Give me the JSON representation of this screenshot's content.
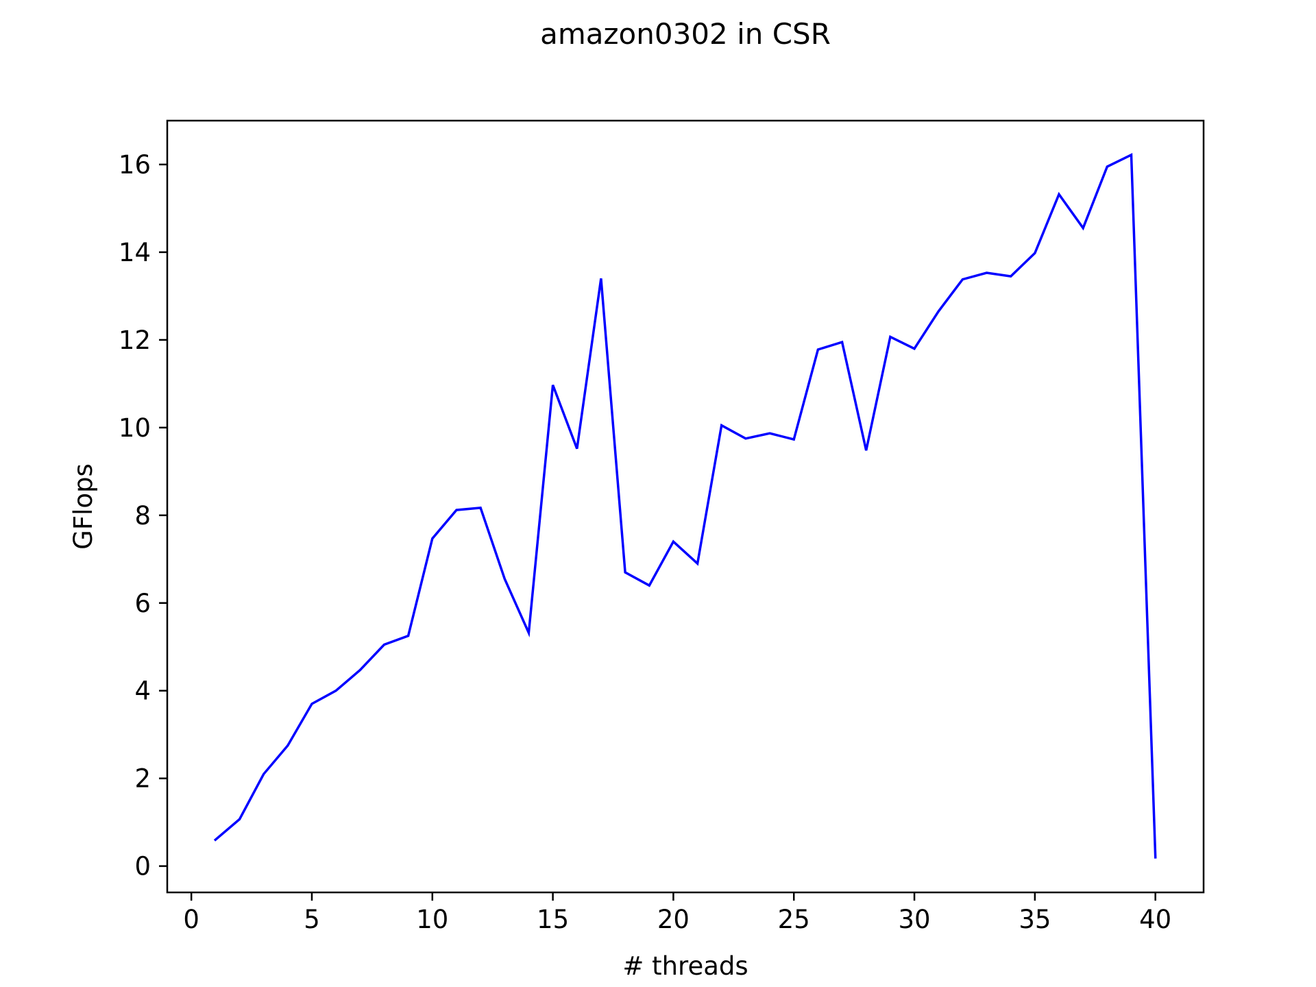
{
  "chart_data": {
    "type": "line",
    "title": "amazon0302 in CSR",
    "xlabel": "# threads",
    "ylabel": "GFlops",
    "xlim": [
      -1,
      42
    ],
    "ylim": [
      -0.6,
      17
    ],
    "xticks": [
      0,
      5,
      10,
      15,
      20,
      25,
      30,
      35,
      40
    ],
    "yticks": [
      0,
      2,
      4,
      6,
      8,
      10,
      12,
      14,
      16
    ],
    "grid": false,
    "legend": "none",
    "series": [
      {
        "color": "#0000ff",
        "x": [
          1,
          2,
          3,
          4,
          5,
          6,
          7,
          8,
          9,
          10,
          11,
          12,
          13,
          14,
          15,
          16,
          17,
          18,
          19,
          20,
          21,
          22,
          23,
          24,
          25,
          26,
          27,
          28,
          29,
          30,
          31,
          32,
          33,
          34,
          35,
          36,
          37,
          38,
          39,
          40
        ],
        "y": [
          0.6,
          1.07,
          2.1,
          2.75,
          3.7,
          4.0,
          4.47,
          5.05,
          5.25,
          7.47,
          8.12,
          8.17,
          6.55,
          5.32,
          10.97,
          9.52,
          13.4,
          6.7,
          6.4,
          7.4,
          6.9,
          10.05,
          9.75,
          9.87,
          9.73,
          11.78,
          11.95,
          9.48,
          12.07,
          11.8,
          12.65,
          13.38,
          13.53,
          13.45,
          13.98,
          15.32,
          14.55,
          15.95,
          16.22,
          0.2
        ]
      }
    ]
  }
}
